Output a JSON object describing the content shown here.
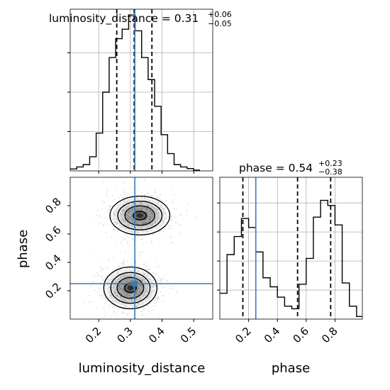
{
  "chart_data": [
    {
      "type": "histogram",
      "panel": "luminosity_distance marginal",
      "title": {
        "main": "luminosity_distance = 0.31",
        "sup": "+0.06",
        "sub": "−0.05"
      },
      "xlim": [
        0.11,
        0.56
      ],
      "bins": [
        0.11,
        0.1305,
        0.151,
        0.1715,
        0.192,
        0.2125,
        0.233,
        0.2535,
        0.274,
        0.2945,
        0.315,
        0.3355,
        0.356,
        0.3765,
        0.397,
        0.4175,
        0.438,
        0.4585,
        0.479,
        0.4995,
        0.52
      ],
      "counts": [
        0.012,
        0.025,
        0.04,
        0.09,
        0.24,
        0.5,
        0.72,
        0.84,
        0.9,
        0.99,
        0.89,
        0.72,
        0.58,
        0.41,
        0.23,
        0.11,
        0.04,
        0.025,
        0.015,
        0.005
      ],
      "quantiles": [
        0.257,
        0.312,
        0.368
      ],
      "truth": 0.314,
      "grid": true
    },
    {
      "type": "histogram",
      "panel": "phase marginal",
      "title": {
        "main": "phase = 0.54",
        "sup": "+0.23",
        "sub": "−0.38"
      },
      "xlim": [
        0.0,
        0.99
      ],
      "bins": [
        0.0,
        0.05,
        0.1,
        0.15,
        0.2,
        0.25,
        0.3,
        0.35,
        0.4,
        0.45,
        0.5,
        0.55,
        0.6,
        0.65,
        0.7,
        0.75,
        0.8,
        0.85,
        0.9,
        0.95,
        1.0
      ],
      "counts": [
        0.2,
        0.5,
        0.64,
        0.78,
        0.71,
        0.52,
        0.32,
        0.25,
        0.17,
        0.1,
        0.08,
        0.27,
        0.47,
        0.79,
        0.92,
        0.88,
        0.73,
        0.28,
        0.1,
        0.02
      ],
      "quantiles": [
        0.16,
        0.54,
        0.77
      ],
      "truth": 0.25,
      "grid": true
    },
    {
      "type": "heatmap",
      "panel": "2D density",
      "x_range": [
        0.11,
        0.56
      ],
      "y_range": [
        0.0,
        1.0
      ],
      "x_ticks": [
        "0.2",
        "0.3",
        "0.4",
        "0.5"
      ],
      "y_ticks": [
        "0.2",
        "0.4",
        "0.6",
        "0.8"
      ],
      "modes": [
        {
          "x": 0.33,
          "y": 0.73,
          "sx": 0.045,
          "sy": 0.065
        },
        {
          "x": 0.3,
          "y": 0.22,
          "sx": 0.04,
          "sy": 0.07
        }
      ],
      "truth": {
        "x": 0.314,
        "y": 0.25
      },
      "xlabel": "luminosity_distance",
      "ylabel": "phase"
    }
  ],
  "phase_ticks": [
    "0.2",
    "0.4",
    "0.6",
    "0.8"
  ],
  "colors": {
    "truth": "#3a7ab5",
    "hist": "#000000",
    "grid": "#b0b0b0"
  }
}
